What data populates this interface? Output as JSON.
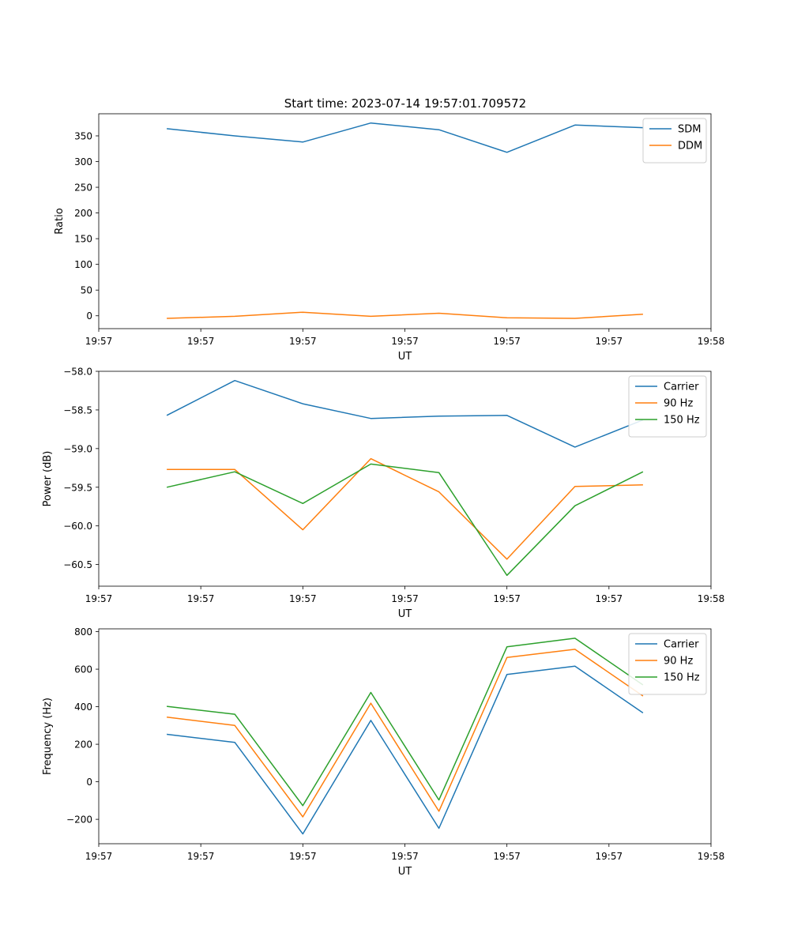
{
  "chart_data": [
    {
      "type": "line",
      "title": "Start time: 2023-07-14 19:57:01.709572",
      "xlabel": "UT",
      "ylabel": "Ratio",
      "xlim": [
        0,
        9
      ],
      "ylim": [
        -25,
        393
      ],
      "x": [
        1,
        2,
        3,
        4,
        5,
        6,
        7,
        8
      ],
      "x_ticks": [
        0,
        1.5,
        3,
        4.5,
        6,
        7.5,
        9
      ],
      "x_tick_labels": [
        "19:57",
        "19:57",
        "19:57",
        "19:57",
        "19:57",
        "19:57",
        "19:58"
      ],
      "y_ticks": [
        0,
        50,
        100,
        150,
        200,
        250,
        300,
        350
      ],
      "y_tick_labels": [
        "0",
        "50",
        "100",
        "150",
        "200",
        "250",
        "300",
        "350"
      ],
      "legend_position": "top-right",
      "series": [
        {
          "name": "SDM",
          "color": "#1f77b4",
          "values": [
            364,
            350,
            338,
            375,
            362,
            318,
            371,
            366
          ]
        },
        {
          "name": "DDM",
          "color": "#ff7f0e",
          "values": [
            -5,
            -1,
            7,
            -1,
            5,
            -4,
            -5,
            3
          ]
        }
      ]
    },
    {
      "type": "line",
      "title": "",
      "xlabel": "UT",
      "ylabel": "Power (dB)",
      "xlim": [
        0,
        9
      ],
      "ylim": [
        -60.78,
        -58.0
      ],
      "x": [
        1,
        2,
        3,
        4,
        5,
        6,
        7,
        8
      ],
      "x_ticks": [
        0,
        1.5,
        3,
        4.5,
        6,
        7.5,
        9
      ],
      "x_tick_labels": [
        "19:57",
        "19:57",
        "19:57",
        "19:57",
        "19:57",
        "19:57",
        "19:58"
      ],
      "y_ticks": [
        -58.0,
        -58.5,
        -59.0,
        -59.5,
        -60.0,
        -60.5
      ],
      "y_tick_labels": [
        "−58.0",
        "−58.5",
        "−59.0",
        "−59.5",
        "−60.0",
        "−60.5"
      ],
      "legend_position": "top-right",
      "series": [
        {
          "name": "Carrier",
          "color": "#1f77b4",
          "values": [
            -58.57,
            -58.12,
            -58.42,
            -58.61,
            -58.58,
            -58.57,
            -58.98,
            -58.63
          ]
        },
        {
          "name": "90 Hz",
          "color": "#ff7f0e",
          "values": [
            -59.27,
            -59.27,
            -60.05,
            -59.13,
            -59.56,
            -60.43,
            -59.49,
            -59.47
          ]
        },
        {
          "name": "150 Hz",
          "color": "#2ca02c",
          "values": [
            -59.5,
            -59.3,
            -59.71,
            -59.2,
            -59.31,
            -60.64,
            -59.74,
            -59.3
          ]
        }
      ]
    },
    {
      "type": "line",
      "title": "",
      "xlabel": "UT",
      "ylabel": "Frequency (Hz)",
      "xlim": [
        0,
        9
      ],
      "ylim": [
        -330,
        815
      ],
      "x": [
        1,
        2,
        3,
        4,
        5,
        6,
        7,
        8
      ],
      "x_ticks": [
        0,
        1.5,
        3,
        4.5,
        6,
        7.5,
        9
      ],
      "x_tick_labels": [
        "19:57",
        "19:57",
        "19:57",
        "19:57",
        "19:57",
        "19:57",
        "19:58"
      ],
      "y_ticks": [
        -200,
        0,
        200,
        400,
        600,
        800
      ],
      "y_tick_labels": [
        "−200",
        "0",
        "200",
        "400",
        "600",
        "800"
      ],
      "legend_position": "top-right",
      "series": [
        {
          "name": "Carrier",
          "color": "#1f77b4",
          "values": [
            253,
            210,
            -278,
            327,
            -248,
            572,
            616,
            367
          ]
        },
        {
          "name": "90 Hz",
          "color": "#ff7f0e",
          "values": [
            345,
            300,
            -187,
            419,
            -157,
            662,
            706,
            457
          ]
        },
        {
          "name": "150 Hz",
          "color": "#2ca02c",
          "values": [
            402,
            360,
            -127,
            476,
            -97,
            719,
            765,
            516
          ]
        }
      ]
    }
  ]
}
